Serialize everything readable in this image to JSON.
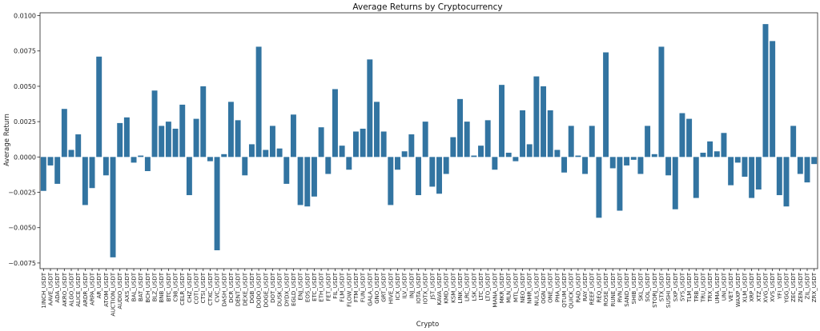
{
  "chart_data": {
    "type": "bar",
    "title": "Average Returns by Cryptocurrency",
    "xlabel": "Crypto",
    "ylabel": "Average Return",
    "ylim": [
      -0.0079,
      0.0102
    ],
    "yticks": [
      -0.0075,
      -0.005,
      -0.0025,
      0.0,
      0.0025,
      0.005,
      0.0075,
      0.01
    ],
    "ytick_labels": [
      "−0.0075",
      "−0.0050",
      "−0.0025",
      "0.0000",
      "0.0025",
      "0.0050",
      "0.0075",
      "0.0100"
    ],
    "bar_color": "#3274a1",
    "categories": [
      "1INCH_USDT",
      "AAVE_USDT",
      "ADA_USDT",
      "AKRO_USDT",
      "ALGO_USDT",
      "ALICE_USDT",
      "ARDR_USDT",
      "ARPA_USDT",
      "AR_USDT",
      "ATOM_USDT",
      "AUCTION_USDT",
      "AUDIO_USDT",
      "AXS_USDT",
      "BAL_USDT",
      "BAT_USDT",
      "BCH_USDT",
      "BLZ_USDT",
      "BNB_USDT",
      "BTC_USDT",
      "C98_USDT",
      "CELR_USDT",
      "CHZ_USDT",
      "COTI_USDT",
      "CTSI_USDT",
      "CTXC_USDT",
      "CVC_USDT",
      "DASH_USDT",
      "DCR_USDT",
      "DENT_USDT",
      "DEXE_USDT",
      "DGB_USDT",
      "DODO_USDT",
      "DOGE_USDT",
      "DOT_USDT",
      "DUSK_USDT",
      "DYDX_USDT",
      "EGLD_USDT",
      "ENJ_USDT",
      "EOS_USDT",
      "ETC_USDT",
      "ETH_USDT",
      "FET_USDT",
      "FIL_USDT",
      "FLM_USDT",
      "FLOW_USDT",
      "FTM_USDT",
      "FUN_USDT",
      "GALA_USDT",
      "GNO_USDT",
      "GRT_USDT",
      "HIVE_USDT",
      "ICX_USDT",
      "ILV_USDT",
      "INJ_USDT",
      "IOTA_USDT",
      "IOTX_USDT",
      "JST_USDT",
      "KAVA_USDT",
      "KMD_USDT",
      "KSM_USDT",
      "LINK_USDT",
      "LRC_USDT",
      "LSK_USDT",
      "LTC_USDT",
      "LTO_USDT",
      "MANA_USDT",
      "MKR_USDT",
      "MLN_USDT",
      "MTL_USDT",
      "NEO_USDT",
      "NMR_USDT",
      "NULS_USDT",
      "OGN_USDT",
      "ONE_USDT",
      "PHA_USDT",
      "QTUM_USDT",
      "QUICK_USDT",
      "RAD_USDT",
      "RAY_USDT",
      "REEF_USDT",
      "REQ_USDT",
      "ROSE_USDT",
      "RUNE_USDT",
      "RVN_USDT",
      "SAND_USDT",
      "SHIB_USDT",
      "SKL_USDT",
      "SOL_USDT",
      "STORJ_USDT",
      "STX_USDT",
      "SUSHI_USDT",
      "SXP_USDT",
      "SYS_USDT",
      "TLM_USDT",
      "TRB_USDT",
      "TRU_USDT",
      "TRX_USDT",
      "UMA_USDT",
      "UNI_USDT",
      "VET_USDT",
      "WAXP_USDT",
      "XLM_USDT",
      "XRP_USDT",
      "XTZ_USDT",
      "XVG_USDT",
      "XVS_USDT",
      "YFI_USDT",
      "YGG_USDT",
      "ZEC_USDT",
      "ZEN_USDT",
      "ZIL_USDT",
      "ZRX_USDT"
    ],
    "values": [
      -0.0024,
      -0.0006,
      -0.0019,
      0.0034,
      0.0005,
      0.0016,
      -0.0034,
      -0.0022,
      0.0071,
      -0.0013,
      -0.0071,
      0.0024,
      0.0028,
      -0.0004,
      0.0001,
      -0.001,
      0.0047,
      0.0022,
      0.0025,
      0.002,
      0.0037,
      -0.0027,
      0.0027,
      0.005,
      -0.0003,
      -0.0066,
      0.0002,
      0.0039,
      0.0026,
      -0.0013,
      0.0009,
      0.0078,
      0.0005,
      0.0022,
      0.0006,
      -0.0019,
      0.003,
      -0.0034,
      -0.0035,
      -0.0028,
      0.0021,
      -0.0012,
      0.0048,
      0.0008,
      -0.0009,
      0.0018,
      0.002,
      0.0069,
      0.0039,
      0.0018,
      -0.0034,
      -0.0009,
      0.0004,
      0.0016,
      -0.0027,
      0.0025,
      -0.0021,
      -0.0026,
      -0.0012,
      0.0014,
      0.0041,
      0.0025,
      0.0001,
      0.0008,
      0.0026,
      -0.0009,
      0.0051,
      0.0003,
      -0.0003,
      0.0033,
      0.0009,
      0.0057,
      0.005,
      0.0033,
      0.0005,
      -0.0011,
      0.0022,
      0.0001,
      -0.0012,
      0.0022,
      -0.0043,
      0.0074,
      -0.0008,
      -0.0038,
      -0.0006,
      -0.0002,
      -0.0012,
      0.0022,
      0.0002,
      0.0078,
      -0.0013,
      -0.0037,
      0.0031,
      0.0027,
      -0.0029,
      0.0003,
      0.0011,
      0.0004,
      0.0017,
      -0.002,
      -0.0004,
      -0.0014,
      -0.0029,
      -0.0023,
      0.0094,
      0.0082,
      -0.0027,
      -0.0035,
      0.0022,
      -0.0012,
      -0.0018,
      -0.0005
    ]
  }
}
